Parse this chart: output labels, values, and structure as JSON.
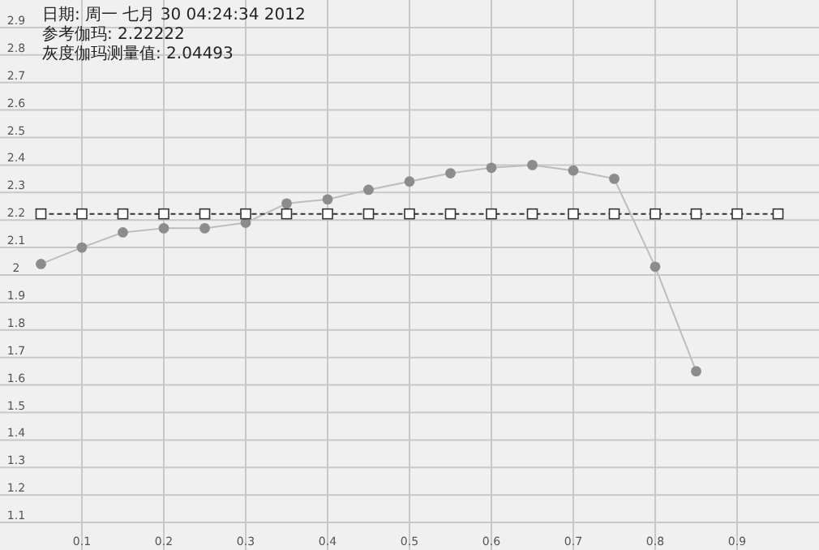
{
  "chart_data": {
    "type": "line",
    "x": [
      0.05,
      0.1,
      0.15,
      0.2,
      0.25,
      0.3,
      0.35,
      0.4,
      0.45,
      0.5,
      0.55,
      0.6,
      0.65,
      0.7,
      0.75,
      0.8,
      0.85,
      0.9,
      0.95
    ],
    "series": [
      {
        "color": "#8c8c8c",
        "marker": "circle",
        "line_style": "solid",
        "x": [
          0.05,
          0.1,
          0.15,
          0.2,
          0.25,
          0.3,
          0.35,
          0.4,
          0.45,
          0.5,
          0.55,
          0.6,
          0.65,
          0.7,
          0.75,
          0.8,
          0.85
        ],
        "values": [
          2.04,
          2.1,
          2.155,
          2.17,
          2.17,
          2.19,
          2.26,
          2.275,
          2.31,
          2.34,
          2.37,
          2.39,
          2.4,
          2.38,
          2.35,
          2.03,
          1.65
        ]
      },
      {
        "color": "#333333",
        "marker": "square",
        "line_style": "dashed",
        "values": [
          2.22222,
          2.22222,
          2.22222,
          2.22222,
          2.22222,
          2.22222,
          2.22222,
          2.22222,
          2.22222,
          2.22222,
          2.22222,
          2.22222,
          2.22222,
          2.22222,
          2.22222,
          2.22222,
          2.22222,
          2.22222,
          2.22222
        ]
      }
    ],
    "xlim": [
      0,
      1
    ],
    "xticks": [
      0.1,
      0.2,
      0.3,
      0.4,
      0.5,
      0.6,
      0.7,
      0.8,
      0.9
    ],
    "ylim": [
      1,
      3
    ],
    "yticks": [
      1.1,
      1.2,
      1.3,
      1.4,
      1.5,
      1.6,
      1.7,
      1.8,
      1.9,
      2,
      2.1,
      2.2,
      2.3,
      2.4,
      2.5,
      2.6,
      2.7,
      2.8,
      2.9
    ],
    "grid": true,
    "annotations": [
      "日期: 周一 七月 30 04:24:34 2012",
      "参考伽玛: 2.22222",
      "灰度伽玛测量值: 2.04493"
    ]
  }
}
